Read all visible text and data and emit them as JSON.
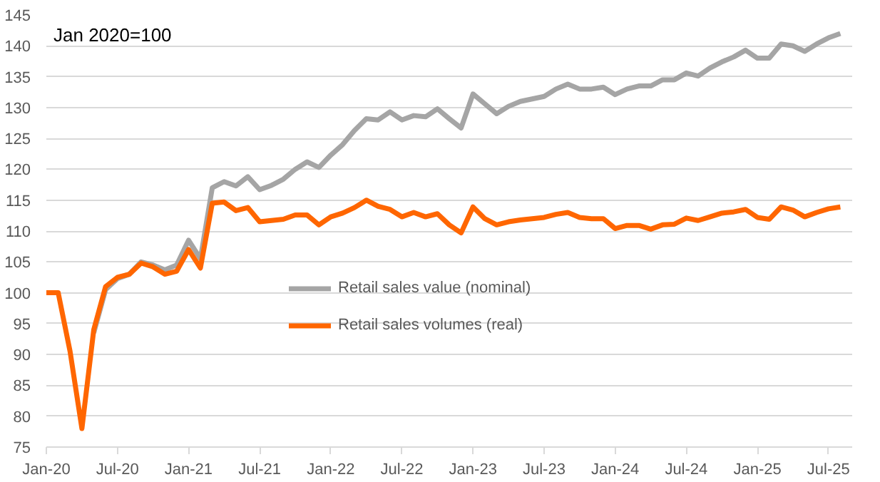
{
  "chart_data": {
    "type": "line",
    "x": [
      "2020-01",
      "2020-02",
      "2020-03",
      "2020-04",
      "2020-05",
      "2020-06",
      "2020-07",
      "2020-08",
      "2020-09",
      "2020-10",
      "2020-11",
      "2020-12",
      "2021-01",
      "2021-02",
      "2021-03",
      "2021-04",
      "2021-05",
      "2021-06",
      "2021-07",
      "2021-08",
      "2021-09",
      "2021-10",
      "2021-11",
      "2021-12",
      "2022-01",
      "2022-02",
      "2022-03",
      "2022-04",
      "2022-05",
      "2022-06",
      "2022-07",
      "2022-08",
      "2022-09",
      "2022-10",
      "2022-11",
      "2022-12",
      "2023-01",
      "2023-02",
      "2023-03",
      "2023-04",
      "2023-05",
      "2023-06",
      "2023-07",
      "2023-08",
      "2023-09",
      "2023-10",
      "2023-11",
      "2023-12",
      "2024-01",
      "2024-02",
      "2024-03",
      "2024-04",
      "2024-05",
      "2024-06",
      "2024-07",
      "2024-08",
      "2024-09",
      "2024-10",
      "2024-11",
      "2024-12",
      "2025-01",
      "2025-02",
      "2025-03",
      "2025-04",
      "2025-05",
      "2025-06",
      "2025-07",
      "2025-08"
    ],
    "series": [
      {
        "name": "Retail sales value (nominal)",
        "color": "#a5a5a5",
        "values": [
          null,
          null,
          null,
          null,
          93.5,
          100.5,
          102.3,
          103,
          105,
          104.5,
          103.7,
          104.5,
          108.5,
          105.5,
          117,
          118,
          117.3,
          118.8,
          116.7,
          117.4,
          118.4,
          120,
          121.2,
          120.3,
          122.3,
          124,
          126.3,
          128.2,
          128,
          129.3,
          128,
          128.7,
          128.5,
          129.8,
          128.2,
          126.7,
          132.2,
          130.6,
          129,
          130.2,
          131,
          131.4,
          131.8,
          133,
          133.8,
          133,
          133,
          133.3,
          132.1,
          133,
          133.5,
          133.5,
          134.5,
          134.5,
          135.6,
          135.1,
          136.4,
          137.4,
          138.2,
          139.3,
          138,
          138,
          140.3,
          140,
          139.1,
          140.3,
          141.3,
          142
        ]
      },
      {
        "name": "Retail sales volumes (real)",
        "color": "#ff6600",
        "values": [
          100,
          100,
          90.5,
          78,
          94,
          101,
          102.5,
          103,
          104.8,
          104.2,
          103,
          103.5,
          107,
          104,
          114.5,
          114.7,
          113.3,
          113.8,
          111.5,
          111.7,
          111.9,
          112.6,
          112.6,
          111,
          112.3,
          112.9,
          113.8,
          115,
          114,
          113.5,
          112.3,
          113,
          112.3,
          112.8,
          111,
          109.7,
          113.9,
          112,
          111,
          111.5,
          111.8,
          112,
          112.2,
          112.7,
          113,
          112.2,
          112,
          112,
          110.4,
          110.9,
          110.9,
          110.3,
          111,
          111.1,
          112.1,
          111.7,
          112.3,
          112.9,
          113.1,
          113.5,
          112.2,
          111.9,
          113.9,
          113.4,
          112.3,
          113,
          113.6,
          113.9
        ]
      }
    ],
    "xlim": [
      "2020-01",
      "2025-09"
    ],
    "xticks": [
      {
        "value": "2020-01",
        "label": "Jan-20"
      },
      {
        "value": "2020-07",
        "label": "Jul-20"
      },
      {
        "value": "2021-01",
        "label": "Jan-21"
      },
      {
        "value": "2021-07",
        "label": "Jul-21"
      },
      {
        "value": "2022-01",
        "label": "Jan-22"
      },
      {
        "value": "2022-07",
        "label": "Jul-22"
      },
      {
        "value": "2023-01",
        "label": "Jan-23"
      },
      {
        "value": "2023-07",
        "label": "Jul-23"
      },
      {
        "value": "2024-01",
        "label": "Jan-24"
      },
      {
        "value": "2024-07",
        "label": "Jul-24"
      },
      {
        "value": "2025-01",
        "label": "Jan-25"
      },
      {
        "value": "2025-07",
        "label": "Jul-25"
      }
    ],
    "ylim": [
      75,
      145
    ],
    "yticks": [
      75,
      80,
      85,
      90,
      95,
      100,
      105,
      110,
      115,
      120,
      125,
      130,
      135,
      140,
      145
    ],
    "annotations": [
      "Jan 2020=100"
    ],
    "grid": "y",
    "legend": "bottom",
    "line_style": "solid",
    "marker": "none"
  }
}
